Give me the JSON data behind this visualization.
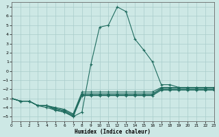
{
  "xlabel": "Humidex (Indice chaleur)",
  "xlim": [
    0,
    23
  ],
  "ylim": [
    -5.5,
    7.5
  ],
  "xticks": [
    0,
    1,
    2,
    3,
    4,
    5,
    6,
    7,
    8,
    9,
    10,
    11,
    12,
    13,
    14,
    15,
    16,
    17,
    18,
    19,
    20,
    21,
    22,
    23
  ],
  "yticks": [
    -5,
    -4,
    -3,
    -2,
    -1,
    0,
    1,
    2,
    3,
    4,
    5,
    6,
    7
  ],
  "bg_color": "#cde8e5",
  "grid_color": "#a8ccca",
  "line_color": "#1e6b5e",
  "main_x": [
    0,
    1,
    2,
    3,
    4,
    5,
    6,
    7,
    8,
    9,
    10,
    11,
    12,
    13,
    14,
    15,
    16,
    17,
    18,
    19,
    20,
    21,
    22,
    23
  ],
  "main_y": [
    -3.0,
    -3.3,
    -3.3,
    -3.8,
    -4.0,
    -4.3,
    -4.5,
    -5.0,
    -4.5,
    0.7,
    4.8,
    5.0,
    7.0,
    6.5,
    3.5,
    2.3,
    1.0,
    -1.5,
    -1.5,
    -1.8,
    -1.8,
    -1.8,
    -1.8,
    -1.8
  ],
  "flat_lines": [
    [
      -3.0,
      -3.3,
      -3.3,
      -3.8,
      -3.8,
      -4.0,
      -4.2,
      -4.7,
      -2.3,
      -2.3,
      -2.3,
      -2.3,
      -2.3,
      -2.3,
      -2.3,
      -2.3,
      -2.3,
      -1.8,
      -1.8,
      -1.8,
      -1.8,
      -1.8,
      -1.8,
      -1.8
    ],
    [
      -3.0,
      -3.3,
      -3.3,
      -3.8,
      -3.8,
      -4.1,
      -4.3,
      -4.8,
      -2.5,
      -2.5,
      -2.5,
      -2.5,
      -2.5,
      -2.5,
      -2.5,
      -2.5,
      -2.5,
      -1.9,
      -1.9,
      -1.9,
      -1.9,
      -1.9,
      -1.9,
      -1.9
    ],
    [
      -3.0,
      -3.3,
      -3.3,
      -3.8,
      -3.8,
      -4.2,
      -4.4,
      -4.9,
      -2.6,
      -2.6,
      -2.6,
      -2.6,
      -2.6,
      -2.6,
      -2.6,
      -2.6,
      -2.6,
      -2.0,
      -2.0,
      -2.0,
      -2.0,
      -2.0,
      -2.0,
      -2.0
    ],
    [
      -3.0,
      -3.3,
      -3.3,
      -3.8,
      -3.8,
      -4.3,
      -4.5,
      -5.0,
      -2.7,
      -2.7,
      -2.7,
      -2.7,
      -2.7,
      -2.7,
      -2.7,
      -2.7,
      -2.7,
      -2.1,
      -2.1,
      -2.1,
      -2.1,
      -2.1,
      -2.1,
      -2.1
    ]
  ]
}
